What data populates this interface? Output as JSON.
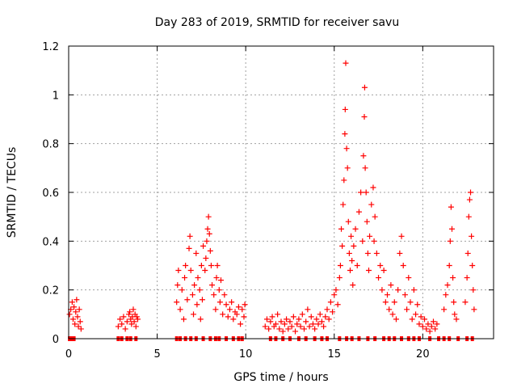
{
  "chart_data": {
    "type": "scatter",
    "title": "Day 283 of 2019, SRMTID for receiver savu",
    "xlabel": "GPS time / hours",
    "ylabel": "SRMTID / TECUs",
    "xlim": [
      0,
      24
    ],
    "ylim": [
      0,
      1.2
    ],
    "xticks": [
      0,
      5,
      10,
      15,
      20
    ],
    "yticks": [
      0,
      0.2,
      0.4,
      0.6,
      0.8,
      1,
      1.2
    ],
    "ytick_labels": [
      "0",
      "0.2",
      "0.4",
      "0.6",
      "0.8",
      "1",
      "1.2"
    ],
    "grid": true,
    "marker": "+",
    "color": "#ff0000",
    "zero_marker_times": [
      0.05,
      0.15,
      0.3,
      2.8,
      3.0,
      3.3,
      3.5,
      3.8,
      6.1,
      6.3,
      6.6,
      6.9,
      7.2,
      7.6,
      8.0,
      8.3,
      8.5,
      8.9,
      9.3,
      9.6,
      9.8,
      11.4,
      11.7,
      12.1,
      12.5,
      13.0,
      13.4,
      13.9,
      14.3,
      14.6,
      15.3,
      15.7,
      16.0,
      16.4,
      16.9,
      17.3,
      17.8,
      18.1,
      18.4,
      18.8,
      19.2,
      19.5,
      19.8,
      20.4,
      20.9,
      21.2,
      21.5,
      22.0,
      22.5,
      22.8
    ],
    "series": [
      {
        "name": "SRMTID",
        "points": [
          [
            0.05,
            0.1
          ],
          [
            0.12,
            0.12
          ],
          [
            0.2,
            0.15
          ],
          [
            0.25,
            0.08
          ],
          [
            0.3,
            0.13
          ],
          [
            0.35,
            0.06
          ],
          [
            0.4,
            0.11
          ],
          [
            0.45,
            0.16
          ],
          [
            0.5,
            0.09
          ],
          [
            0.55,
            0.05
          ],
          [
            0.6,
            0.12
          ],
          [
            0.65,
            0.07
          ],
          [
            0.7,
            0.04
          ],
          [
            2.8,
            0.05
          ],
          [
            2.9,
            0.08
          ],
          [
            3.0,
            0.06
          ],
          [
            3.1,
            0.09
          ],
          [
            3.2,
            0.04
          ],
          [
            3.3,
            0.07
          ],
          [
            3.4,
            0.1
          ],
          [
            3.45,
            0.11
          ],
          [
            3.5,
            0.08
          ],
          [
            3.55,
            0.06
          ],
          [
            3.6,
            0.09
          ],
          [
            3.65,
            0.12
          ],
          [
            3.7,
            0.07
          ],
          [
            3.75,
            0.1
          ],
          [
            3.8,
            0.05
          ],
          [
            3.85,
            0.09
          ],
          [
            3.9,
            0.08
          ],
          [
            6.1,
            0.15
          ],
          [
            6.15,
            0.22
          ],
          [
            6.2,
            0.28
          ],
          [
            6.3,
            0.12
          ],
          [
            6.4,
            0.2
          ],
          [
            6.5,
            0.08
          ],
          [
            6.55,
            0.25
          ],
          [
            6.6,
            0.3
          ],
          [
            6.7,
            0.16
          ],
          [
            6.8,
            0.37
          ],
          [
            6.85,
            0.42
          ],
          [
            6.9,
            0.28
          ],
          [
            7.0,
            0.18
          ],
          [
            7.05,
            0.1
          ],
          [
            7.1,
            0.22
          ],
          [
            7.2,
            0.35
          ],
          [
            7.25,
            0.14
          ],
          [
            7.3,
            0.25
          ],
          [
            7.4,
            0.2
          ],
          [
            7.45,
            0.08
          ],
          [
            7.5,
            0.3
          ],
          [
            7.55,
            0.16
          ],
          [
            7.6,
            0.38
          ],
          [
            7.7,
            0.28
          ],
          [
            7.75,
            0.33
          ],
          [
            7.8,
            0.4
          ],
          [
            7.85,
            0.45
          ],
          [
            7.9,
            0.5
          ],
          [
            7.95,
            0.43
          ],
          [
            8.0,
            0.36
          ],
          [
            8.05,
            0.3
          ],
          [
            8.1,
            0.22
          ],
          [
            8.2,
            0.18
          ],
          [
            8.3,
            0.12
          ],
          [
            8.35,
            0.25
          ],
          [
            8.4,
            0.3
          ],
          [
            8.5,
            0.2
          ],
          [
            8.55,
            0.15
          ],
          [
            8.6,
            0.24
          ],
          [
            8.7,
            0.1
          ],
          [
            8.8,
            0.18
          ],
          [
            8.9,
            0.14
          ],
          [
            9.0,
            0.09
          ],
          [
            9.1,
            0.12
          ],
          [
            9.2,
            0.15
          ],
          [
            9.3,
            0.08
          ],
          [
            9.4,
            0.11
          ],
          [
            9.5,
            0.1
          ],
          [
            9.6,
            0.13
          ],
          [
            9.7,
            0.06
          ],
          [
            9.8,
            0.12
          ],
          [
            9.9,
            0.09
          ],
          [
            9.95,
            0.14
          ],
          [
            11.1,
            0.05
          ],
          [
            11.2,
            0.08
          ],
          [
            11.3,
            0.04
          ],
          [
            11.4,
            0.07
          ],
          [
            11.5,
            0.09
          ],
          [
            11.6,
            0.05
          ],
          [
            11.7,
            0.06
          ],
          [
            11.8,
            0.1
          ],
          [
            11.9,
            0.04
          ],
          [
            12.0,
            0.07
          ],
          [
            12.1,
            0.03
          ],
          [
            12.2,
            0.06
          ],
          [
            12.3,
            0.08
          ],
          [
            12.4,
            0.04
          ],
          [
            12.5,
            0.07
          ],
          [
            12.6,
            0.05
          ],
          [
            12.7,
            0.09
          ],
          [
            12.8,
            0.03
          ],
          [
            12.9,
            0.06
          ],
          [
            13.0,
            0.08
          ],
          [
            13.1,
            0.05
          ],
          [
            13.2,
            0.1
          ],
          [
            13.3,
            0.04
          ],
          [
            13.4,
            0.07
          ],
          [
            13.5,
            0.12
          ],
          [
            13.6,
            0.05
          ],
          [
            13.7,
            0.09
          ],
          [
            13.8,
            0.06
          ],
          [
            13.9,
            0.04
          ],
          [
            14.0,
            0.08
          ],
          [
            14.1,
            0.06
          ],
          [
            14.2,
            0.1
          ],
          [
            14.3,
            0.07
          ],
          [
            14.4,
            0.05
          ],
          [
            14.5,
            0.09
          ],
          [
            14.6,
            0.12
          ],
          [
            14.7,
            0.08
          ],
          [
            14.8,
            0.15
          ],
          [
            14.9,
            0.11
          ],
          [
            15.0,
            0.18
          ],
          [
            15.1,
            0.2
          ],
          [
            15.2,
            0.14
          ],
          [
            15.3,
            0.25
          ],
          [
            15.35,
            0.3
          ],
          [
            15.4,
            0.45
          ],
          [
            15.45,
            0.38
          ],
          [
            15.5,
            0.55
          ],
          [
            15.55,
            0.65
          ],
          [
            15.6,
            0.84
          ],
          [
            15.62,
            0.94
          ],
          [
            15.65,
            1.13
          ],
          [
            15.7,
            0.78
          ],
          [
            15.75,
            0.7
          ],
          [
            15.8,
            0.48
          ],
          [
            15.85,
            0.35
          ],
          [
            15.9,
            0.28
          ],
          [
            15.95,
            0.42
          ],
          [
            16.0,
            0.32
          ],
          [
            16.05,
            0.22
          ],
          [
            16.1,
            0.38
          ],
          [
            16.2,
            0.45
          ],
          [
            16.3,
            0.3
          ],
          [
            16.4,
            0.52
          ],
          [
            16.5,
            0.6
          ],
          [
            16.6,
            0.4
          ],
          [
            16.65,
            0.75
          ],
          [
            16.7,
            0.91
          ],
          [
            16.72,
            1.03
          ],
          [
            16.75,
            0.7
          ],
          [
            16.8,
            0.6
          ],
          [
            16.85,
            0.48
          ],
          [
            16.9,
            0.35
          ],
          [
            16.95,
            0.28
          ],
          [
            17.0,
            0.42
          ],
          [
            17.1,
            0.55
          ],
          [
            17.2,
            0.62
          ],
          [
            17.25,
            0.4
          ],
          [
            17.3,
            0.5
          ],
          [
            17.4,
            0.35
          ],
          [
            17.5,
            0.25
          ],
          [
            17.6,
            0.3
          ],
          [
            17.7,
            0.2
          ],
          [
            17.8,
            0.28
          ],
          [
            17.9,
            0.15
          ],
          [
            18.0,
            0.18
          ],
          [
            18.1,
            0.12
          ],
          [
            18.2,
            0.22
          ],
          [
            18.3,
            0.1
          ],
          [
            18.4,
            0.15
          ],
          [
            18.5,
            0.08
          ],
          [
            18.6,
            0.2
          ],
          [
            18.7,
            0.35
          ],
          [
            18.8,
            0.42
          ],
          [
            18.9,
            0.3
          ],
          [
            19.0,
            0.18
          ],
          [
            19.1,
            0.12
          ],
          [
            19.2,
            0.25
          ],
          [
            19.3,
            0.15
          ],
          [
            19.4,
            0.08
          ],
          [
            19.5,
            0.2
          ],
          [
            19.6,
            0.1
          ],
          [
            19.7,
            0.14
          ],
          [
            19.8,
            0.06
          ],
          [
            19.9,
            0.09
          ],
          [
            20.0,
            0.05
          ],
          [
            20.1,
            0.08
          ],
          [
            20.2,
            0.04
          ],
          [
            20.3,
            0.06
          ],
          [
            20.4,
            0.03
          ],
          [
            20.5,
            0.05
          ],
          [
            20.6,
            0.07
          ],
          [
            20.7,
            0.04
          ],
          [
            20.8,
            0.06
          ],
          [
            21.2,
            0.12
          ],
          [
            21.3,
            0.18
          ],
          [
            21.4,
            0.22
          ],
          [
            21.5,
            0.3
          ],
          [
            21.55,
            0.4
          ],
          [
            21.6,
            0.54
          ],
          [
            21.65,
            0.45
          ],
          [
            21.7,
            0.25
          ],
          [
            21.75,
            0.15
          ],
          [
            21.8,
            0.1
          ],
          [
            21.9,
            0.08
          ],
          [
            22.4,
            0.15
          ],
          [
            22.5,
            0.25
          ],
          [
            22.55,
            0.35
          ],
          [
            22.6,
            0.5
          ],
          [
            22.65,
            0.57
          ],
          [
            22.7,
            0.6
          ],
          [
            22.75,
            0.42
          ],
          [
            22.8,
            0.3
          ],
          [
            22.85,
            0.2
          ],
          [
            22.9,
            0.12
          ]
        ]
      }
    ]
  }
}
